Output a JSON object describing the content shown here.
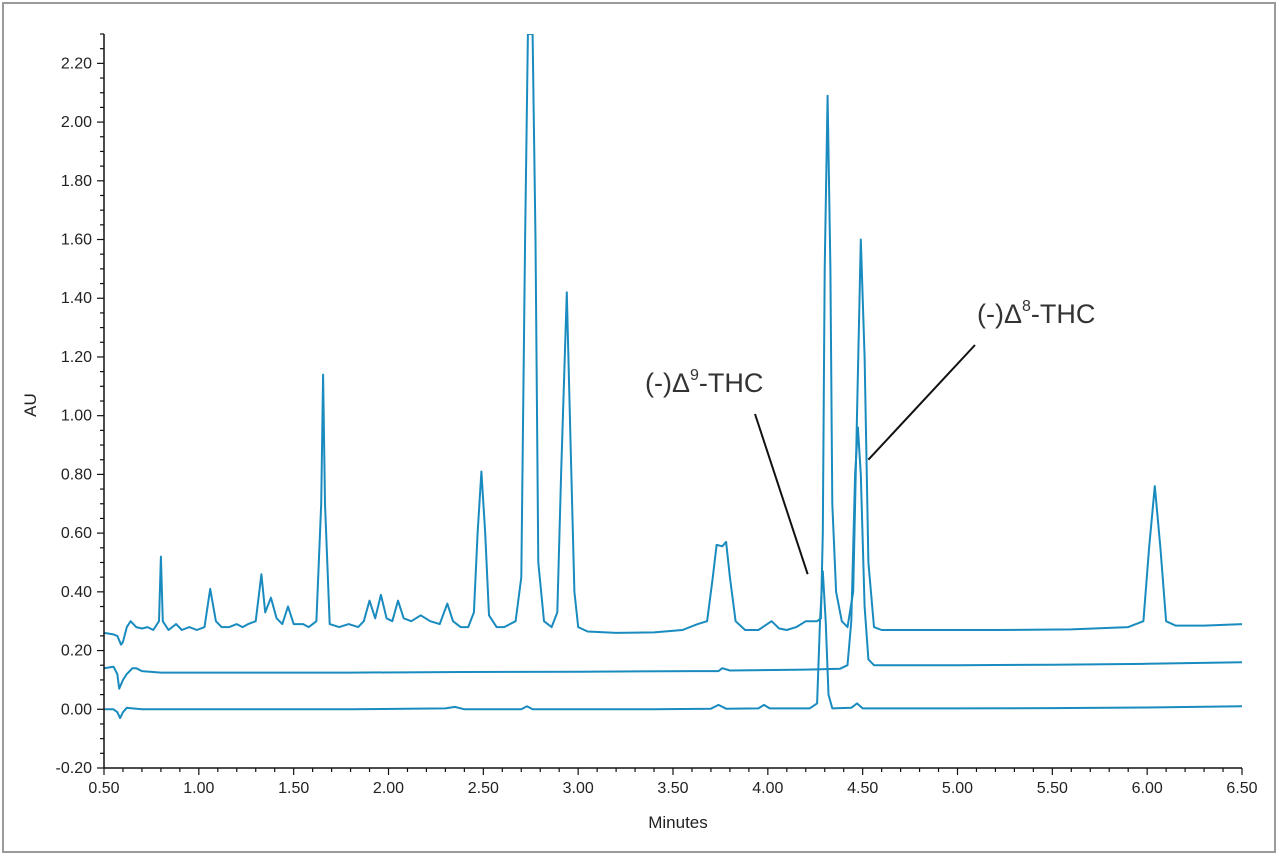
{
  "chart_data": {
    "type": "line",
    "title": "",
    "xlabel": "Minutes",
    "ylabel": "AU",
    "xlim": [
      0.5,
      6.5
    ],
    "ylim": [
      -0.2,
      2.3
    ],
    "x_ticks": [
      0.5,
      1.0,
      1.5,
      2.0,
      2.5,
      3.0,
      3.5,
      4.0,
      4.5,
      5.0,
      5.5,
      6.0,
      6.5
    ],
    "x_tick_labels": [
      "0.50",
      "1.00",
      "1.50",
      "2.00",
      "2.50",
      "3.00",
      "3.50",
      "4.00",
      "4.50",
      "5.00",
      "5.50",
      "6.00",
      "6.50"
    ],
    "y_ticks": [
      -0.2,
      0.0,
      0.2,
      0.4,
      0.6,
      0.8,
      1.0,
      1.2,
      1.4,
      1.6,
      1.8,
      2.0,
      2.2
    ],
    "y_tick_labels": [
      "-0.20",
      "0.00",
      "0.20",
      "0.40",
      "0.60",
      "0.80",
      "1.00",
      "1.20",
      "1.40",
      "1.60",
      "1.80",
      "2.00",
      "2.20"
    ],
    "grid": false,
    "line_color": "#1a8bbf",
    "series": [
      {
        "points": [
          [
            0.5,
            0.26
          ],
          [
            0.55,
            0.255
          ],
          [
            0.57,
            0.25
          ],
          [
            0.59,
            0.22
          ],
          [
            0.6,
            0.23
          ],
          [
            0.62,
            0.28
          ],
          [
            0.64,
            0.3
          ],
          [
            0.67,
            0.28
          ],
          [
            0.7,
            0.275
          ],
          [
            0.73,
            0.28
          ],
          [
            0.76,
            0.27
          ],
          [
            0.79,
            0.3
          ],
          [
            0.8,
            0.52
          ],
          [
            0.81,
            0.3
          ],
          [
            0.84,
            0.27
          ],
          [
            0.88,
            0.29
          ],
          [
            0.91,
            0.27
          ],
          [
            0.95,
            0.28
          ],
          [
            0.99,
            0.27
          ],
          [
            1.03,
            0.28
          ],
          [
            1.06,
            0.41
          ],
          [
            1.09,
            0.3
          ],
          [
            1.12,
            0.28
          ],
          [
            1.16,
            0.28
          ],
          [
            1.2,
            0.29
          ],
          [
            1.23,
            0.28
          ],
          [
            1.26,
            0.29
          ],
          [
            1.3,
            0.3
          ],
          [
            1.33,
            0.46
          ],
          [
            1.35,
            0.33
          ],
          [
            1.38,
            0.38
          ],
          [
            1.41,
            0.31
          ],
          [
            1.44,
            0.29
          ],
          [
            1.47,
            0.35
          ],
          [
            1.5,
            0.29
          ],
          [
            1.55,
            0.29
          ],
          [
            1.58,
            0.28
          ],
          [
            1.62,
            0.3
          ],
          [
            1.645,
            0.7
          ],
          [
            1.655,
            1.14
          ],
          [
            1.665,
            0.7
          ],
          [
            1.69,
            0.29
          ],
          [
            1.74,
            0.28
          ],
          [
            1.79,
            0.29
          ],
          [
            1.84,
            0.28
          ],
          [
            1.87,
            0.3
          ],
          [
            1.9,
            0.37
          ],
          [
            1.93,
            0.31
          ],
          [
            1.96,
            0.39
          ],
          [
            1.99,
            0.31
          ],
          [
            2.02,
            0.3
          ],
          [
            2.05,
            0.37
          ],
          [
            2.08,
            0.31
          ],
          [
            2.12,
            0.3
          ],
          [
            2.17,
            0.32
          ],
          [
            2.22,
            0.3
          ],
          [
            2.27,
            0.29
          ],
          [
            2.31,
            0.36
          ],
          [
            2.34,
            0.3
          ],
          [
            2.38,
            0.28
          ],
          [
            2.42,
            0.28
          ],
          [
            2.45,
            0.33
          ],
          [
            2.47,
            0.6
          ],
          [
            2.49,
            0.81
          ],
          [
            2.51,
            0.6
          ],
          [
            2.53,
            0.32
          ],
          [
            2.57,
            0.28
          ],
          [
            2.61,
            0.28
          ],
          [
            2.64,
            0.29
          ],
          [
            2.67,
            0.3
          ],
          [
            2.7,
            0.45
          ],
          [
            2.72,
            1.6
          ],
          [
            2.735,
            2.3
          ],
          [
            2.76,
            2.3
          ],
          [
            2.775,
            1.6
          ],
          [
            2.79,
            0.5
          ],
          [
            2.82,
            0.3
          ],
          [
            2.86,
            0.28
          ],
          [
            2.89,
            0.33
          ],
          [
            2.91,
            0.8
          ],
          [
            2.94,
            1.42
          ],
          [
            2.96,
            0.9
          ],
          [
            2.98,
            0.4
          ],
          [
            3.0,
            0.28
          ],
          [
            3.05,
            0.265
          ],
          [
            3.2,
            0.26
          ],
          [
            3.4,
            0.262
          ],
          [
            3.55,
            0.27
          ],
          [
            3.63,
            0.29
          ],
          [
            3.68,
            0.3
          ],
          [
            3.71,
            0.45
          ],
          [
            3.73,
            0.56
          ],
          [
            3.76,
            0.555
          ],
          [
            3.78,
            0.57
          ],
          [
            3.8,
            0.45
          ],
          [
            3.83,
            0.3
          ],
          [
            3.88,
            0.27
          ],
          [
            3.95,
            0.27
          ],
          [
            4.02,
            0.3
          ],
          [
            4.06,
            0.275
          ],
          [
            4.1,
            0.27
          ],
          [
            4.15,
            0.28
          ],
          [
            4.2,
            0.3
          ],
          [
            4.26,
            0.3
          ],
          [
            4.28,
            0.31
          ],
          [
            4.29,
            0.6
          ],
          [
            4.3,
            1.5
          ],
          [
            4.315,
            2.09
          ],
          [
            4.33,
            1.5
          ],
          [
            4.34,
            0.7
          ],
          [
            4.36,
            0.4
          ],
          [
            4.39,
            0.3
          ],
          [
            4.42,
            0.28
          ],
          [
            4.45,
            0.4
          ],
          [
            4.47,
            1.0
          ],
          [
            4.49,
            1.6
          ],
          [
            4.51,
            1.2
          ],
          [
            4.53,
            0.5
          ],
          [
            4.56,
            0.28
          ],
          [
            4.6,
            0.27
          ],
          [
            4.8,
            0.27
          ],
          [
            5.2,
            0.27
          ],
          [
            5.6,
            0.272
          ],
          [
            5.9,
            0.28
          ],
          [
            5.98,
            0.3
          ],
          [
            6.01,
            0.55
          ],
          [
            6.04,
            0.76
          ],
          [
            6.07,
            0.55
          ],
          [
            6.1,
            0.3
          ],
          [
            6.15,
            0.285
          ],
          [
            6.3,
            0.285
          ],
          [
            6.5,
            0.29
          ]
        ]
      },
      {
        "points": [
          [
            0.5,
            0.14
          ],
          [
            0.55,
            0.145
          ],
          [
            0.57,
            0.12
          ],
          [
            0.58,
            0.07
          ],
          [
            0.6,
            0.1
          ],
          [
            0.62,
            0.12
          ],
          [
            0.65,
            0.14
          ],
          [
            0.67,
            0.14
          ],
          [
            0.7,
            0.13
          ],
          [
            0.8,
            0.125
          ],
          [
            1.2,
            0.125
          ],
          [
            1.8,
            0.125
          ],
          [
            2.4,
            0.127
          ],
          [
            3.0,
            0.128
          ],
          [
            3.6,
            0.13
          ],
          [
            3.74,
            0.13
          ],
          [
            3.76,
            0.14
          ],
          [
            3.8,
            0.132
          ],
          [
            4.2,
            0.135
          ],
          [
            4.38,
            0.138
          ],
          [
            4.42,
            0.15
          ],
          [
            4.44,
            0.3
          ],
          [
            4.46,
            0.8
          ],
          [
            4.475,
            0.96
          ],
          [
            4.49,
            0.8
          ],
          [
            4.51,
            0.35
          ],
          [
            4.53,
            0.17
          ],
          [
            4.56,
            0.15
          ],
          [
            5.0,
            0.15
          ],
          [
            5.5,
            0.152
          ],
          [
            6.0,
            0.155
          ],
          [
            6.5,
            0.16
          ]
        ]
      },
      {
        "points": [
          [
            0.5,
            0.0
          ],
          [
            0.55,
            0.0
          ],
          [
            0.57,
            -0.01
          ],
          [
            0.585,
            -0.03
          ],
          [
            0.6,
            -0.01
          ],
          [
            0.62,
            0.005
          ],
          [
            0.7,
            0.0
          ],
          [
            1.2,
            0.0
          ],
          [
            1.8,
            0.0
          ],
          [
            2.3,
            0.003
          ],
          [
            2.35,
            0.008
          ],
          [
            2.4,
            0.0
          ],
          [
            2.7,
            0.0
          ],
          [
            2.73,
            0.01
          ],
          [
            2.76,
            0.0
          ],
          [
            3.4,
            0.0
          ],
          [
            3.7,
            0.002
          ],
          [
            3.74,
            0.015
          ],
          [
            3.78,
            0.002
          ],
          [
            3.95,
            0.003
          ],
          [
            3.98,
            0.015
          ],
          [
            4.01,
            0.003
          ],
          [
            4.22,
            0.003
          ],
          [
            4.26,
            0.02
          ],
          [
            4.275,
            0.3
          ],
          [
            4.29,
            0.47
          ],
          [
            4.305,
            0.3
          ],
          [
            4.32,
            0.05
          ],
          [
            4.34,
            0.003
          ],
          [
            4.44,
            0.005
          ],
          [
            4.47,
            0.02
          ],
          [
            4.5,
            0.003
          ],
          [
            5.0,
            0.003
          ],
          [
            5.5,
            0.004
          ],
          [
            6.0,
            0.006
          ],
          [
            6.5,
            0.01
          ]
        ]
      }
    ],
    "annotations": [
      {
        "base": "(-)Δ",
        "sup": "9",
        "suffix": "-THC",
        "target": [
          4.21,
          0.46
        ]
      },
      {
        "base": "(-)Δ",
        "sup": "8",
        "suffix": "-THC",
        "target": [
          4.53,
          0.85
        ]
      }
    ]
  }
}
